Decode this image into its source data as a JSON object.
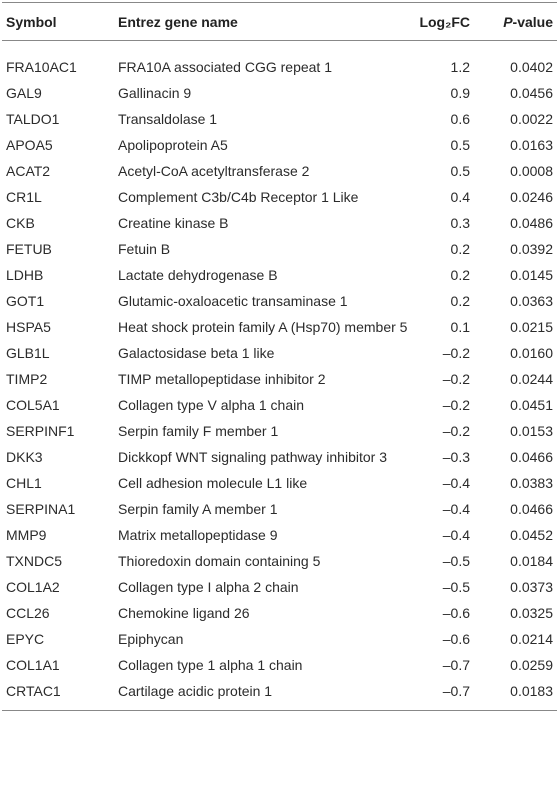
{
  "table": {
    "header": [
      "Symbol",
      "Entrez gene name",
      "Log₂FC",
      "P-value"
    ],
    "rows": [
      [
        "FRA10AC1",
        "FRA10A associated CGG repeat 1",
        "1.2",
        "0.0402"
      ],
      [
        "GAL9",
        "Gallinacin 9",
        "0.9",
        "0.0456"
      ],
      [
        "TALDO1",
        "Transaldolase 1",
        "0.6",
        "0.0022"
      ],
      [
        "APOA5",
        "Apolipoprotein A5",
        "0.5",
        "0.0163"
      ],
      [
        "ACAT2",
        "Acetyl-CoA acetyltransferase 2",
        "0.5",
        "0.0008"
      ],
      [
        "CR1L",
        "Complement C3b/C4b Receptor 1 Like",
        "0.4",
        "0.0246"
      ],
      [
        "CKB",
        "Creatine kinase B",
        "0.3",
        "0.0486"
      ],
      [
        "FETUB",
        "Fetuin B",
        "0.2",
        "0.0392"
      ],
      [
        "LDHB",
        "Lactate dehydrogenase B",
        "0.2",
        "0.0145"
      ],
      [
        "GOT1",
        "Glutamic-oxaloacetic transaminase 1",
        "0.2",
        "0.0363"
      ],
      [
        "HSPA5",
        "Heat shock protein family A (Hsp70) member 5",
        "0.1",
        "0.0215"
      ],
      [
        "GLB1L",
        "Galactosidase beta 1 like",
        "–0.2",
        "0.0160"
      ],
      [
        "TIMP2",
        "TIMP metallopeptidase inhibitor 2",
        "–0.2",
        "0.0244"
      ],
      [
        "COL5A1",
        "Collagen type V alpha 1 chain",
        "–0.2",
        "0.0451"
      ],
      [
        "SERPINF1",
        "Serpin family F member 1",
        "–0.2",
        "0.0153"
      ],
      [
        "DKK3",
        "Dickkopf WNT signaling pathway inhibitor 3",
        "–0.3",
        "0.0466"
      ],
      [
        "CHL1",
        "Cell adhesion molecule L1 like",
        "–0.4",
        "0.0383"
      ],
      [
        "SERPINA1",
        "Serpin family A member 1",
        "–0.4",
        "0.0466"
      ],
      [
        "MMP9",
        "Matrix metallopeptidase 9",
        "–0.4",
        "0.0452"
      ],
      [
        "TXNDC5",
        "Thioredoxin domain containing 5",
        "–0.5",
        "0.0184"
      ],
      [
        "COL1A2",
        "Collagen type I alpha 2 chain",
        "–0.5",
        "0.0373"
      ],
      [
        "CCL26",
        "Chemokine ligand 26",
        "–0.6",
        "0.0325"
      ],
      [
        "EPYC",
        "Epiphycan",
        "–0.6",
        "0.0214"
      ],
      [
        "COL1A1",
        "Collagen type 1 alpha 1 chain",
        "–0.7",
        "0.0259"
      ],
      [
        "CRTAC1",
        "Cartilage acidic protein 1",
        "–0.7",
        "0.0183"
      ]
    ]
  }
}
